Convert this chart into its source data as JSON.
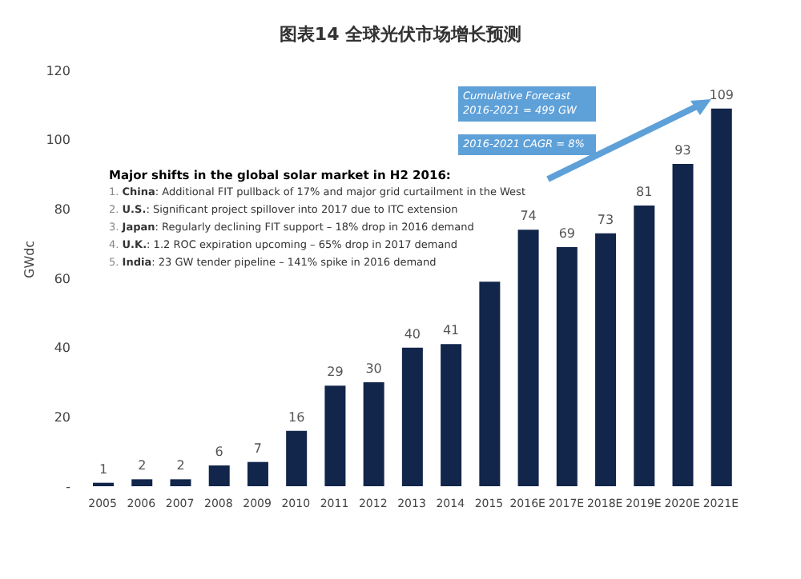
{
  "chart_data": {
    "type": "bar",
    "title": "图表14  全球光伏市场增长预测",
    "ylabel": "GWdc",
    "categories": [
      "2005",
      "2006",
      "2007",
      "2008",
      "2009",
      "2010",
      "2011",
      "2012",
      "2013",
      "2014",
      "2015",
      "2016E",
      "2017E",
      "2018E",
      "2019E",
      "2020E",
      "2021E"
    ],
    "values": [
      1,
      2,
      2,
      6,
      7,
      16,
      29,
      30,
      40,
      41,
      59,
      74,
      69,
      73,
      81,
      93,
      109
    ],
    "value_labels": [
      "1",
      "2",
      "2",
      "6",
      "7",
      "16",
      "29",
      "30",
      "40",
      "41",
      null,
      "74",
      "69",
      "73",
      "81",
      "93",
      "109"
    ],
    "color": "#12254a",
    "ylim": [
      0,
      120
    ],
    "yticks": [
      {
        "value": 0,
        "label": "-"
      },
      20,
      40,
      60,
      80,
      100,
      120
    ],
    "annotations": [
      "Major shifts in the global solar market in H2 2016:",
      "1. China: Additional FIT pullback of 17% and major grid curtailment in the West",
      "2. U.S.: Significant project spillover into 2017 due to ITC extension",
      "3. Japan: Regularly declining FIT support – 18% drop in 2016 demand",
      "4. U.K.: 1.2 ROC expiration upcoming – 65% drop in 2017 demand",
      "5. India: 23 GW tender pipeline – 141% spike in 2016 demand",
      "Cumulative Forecast 2016-2021 = 499 GW",
      "2016-2021 CAGR = 8%"
    ]
  }
}
